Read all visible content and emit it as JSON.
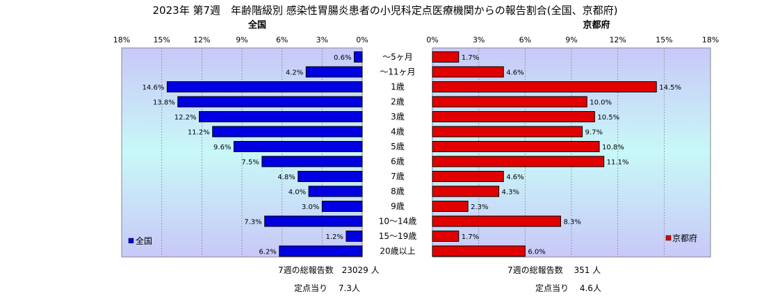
{
  "title": "2023年 第7週　年齢階級別 感染性胃腸炎患者の小児科定点医療機関からの報告割合(全国、京都府)",
  "chart_data": {
    "type": "bar",
    "orientation": "horizontal-butterfly",
    "categories": [
      "～5ヶ月",
      "～11ヶ月",
      "1歳",
      "2歳",
      "3歳",
      "4歳",
      "5歳",
      "6歳",
      "7歳",
      "8歳",
      "9歳",
      "10～14歳",
      "15～19歳",
      "20歳以上"
    ],
    "xlim": [
      0,
      18
    ],
    "ticks": [
      0,
      3,
      6,
      9,
      12,
      15,
      18
    ],
    "tick_labels": [
      "0%",
      "3%",
      "6%",
      "9%",
      "12%",
      "15%",
      "18%"
    ],
    "grid": true,
    "series": [
      {
        "name": "全国",
        "side": "left",
        "color": "#0000e0",
        "values": [
          0.6,
          4.2,
          14.6,
          13.8,
          12.2,
          11.2,
          9.6,
          7.5,
          4.8,
          4.0,
          3.0,
          7.3,
          1.2,
          6.2
        ],
        "labels": [
          "0.6%",
          "4.2%",
          "14.6%",
          "13.8%",
          "12.2%",
          "11.2%",
          "9.6%",
          "7.5%",
          "4.8%",
          "4.0%",
          "3.0%",
          "7.3%",
          "1.2%",
          "6.2%"
        ]
      },
      {
        "name": "京都府",
        "side": "right",
        "color": "#e00000",
        "values": [
          1.7,
          4.6,
          14.5,
          10.0,
          10.5,
          9.7,
          10.8,
          11.1,
          4.6,
          4.3,
          2.3,
          8.3,
          1.7,
          6.0
        ],
        "labels": [
          "1.7%",
          "4.6%",
          "14.5%",
          "10.0%",
          "10.5%",
          "9.7%",
          "10.8%",
          "11.1%",
          "4.6%",
          "4.3%",
          "2.3%",
          "8.3%",
          "1.7%",
          "6.0%"
        ]
      }
    ]
  },
  "panels": {
    "left_label": "全国",
    "right_label": "京都府",
    "legend_left": "全国",
    "legend_right": "京都府"
  },
  "footer": {
    "left_total": "7週の総報告数　23029 人",
    "left_per_site": "定点当り　 7.3人",
    "right_total": "7週の総報告数　  351 人",
    "right_per_site": "定点当り　 4.6人"
  },
  "colors": {
    "left_bar": "#0000e0",
    "right_bar": "#e00000",
    "plot_bg_top": "#c8c8f8",
    "plot_bg_bottom": "#c8f8f8"
  }
}
